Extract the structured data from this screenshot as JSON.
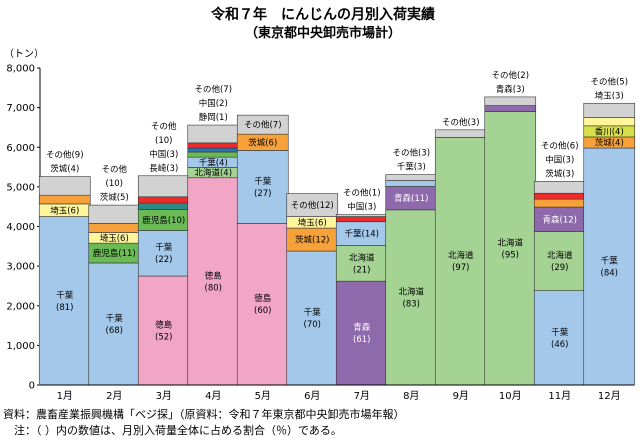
{
  "title": "令和７年　にんじんの月別入荷実績",
  "subtitle": "（東京都中央卸売市場計）",
  "footnote_source": "資料：農畜産業振興機構「ベジ探」（原資料：令和７年東京都中央卸売市場年報）",
  "footnote_note": "　注：（ ）内の数値は、月別入荷量全体に占める割合（％）である。",
  "chart_data": {
    "type": "stacked-bar",
    "unit": "（トン）",
    "ylim": [
      0,
      8000
    ],
    "yticks": [
      "0",
      "1,000",
      "2,000",
      "3,000",
      "4,000",
      "5,000",
      "6,000",
      "7,000",
      "8,000"
    ],
    "grid": false,
    "colors": {
      "千葉": "#a4c8ea",
      "徳島": "#f2a6c6",
      "北海道": "#a5d394",
      "青森": "#8e6aad",
      "鹿児島": "#6aba55",
      "茨城": "#f7a13a",
      "埼玉": "#fff59c",
      "長崎": "#2d8b86",
      "中国": "#ee2a2a",
      "静岡": "#2e6fb5",
      "香川": "#d7e04a",
      "その他": "#d2d2d2"
    },
    "months": [
      {
        "label": "1月",
        "segments": [
          {
            "name": "千葉",
            "value": 4250,
            "label": "千葉\n(81)"
          },
          {
            "name": "埼玉",
            "value": 320,
            "label": "埼玉(6)"
          },
          {
            "name": "茨城",
            "value": 220
          },
          {
            "name": "その他",
            "value": 470
          }
        ],
        "above": [
          "その他(9)",
          "茨城(4)"
        ]
      },
      {
        "label": "2月",
        "segments": [
          {
            "name": "千葉",
            "value": 3080,
            "label": "千葉\n(68)"
          },
          {
            "name": "鹿児島",
            "value": 500,
            "label": "鹿児島(11)"
          },
          {
            "name": "埼玉",
            "value": 270,
            "label": "埼玉(6)"
          },
          {
            "name": "茨城",
            "value": 230
          },
          {
            "name": "その他",
            "value": 460
          }
        ],
        "above": [
          "その他",
          "(10)",
          "茨城(5)"
        ]
      },
      {
        "label": "3月",
        "segments": [
          {
            "name": "徳島",
            "value": 2750,
            "label": "徳島\n(52)"
          },
          {
            "name": "千葉",
            "value": 1150,
            "label": "千葉\n(22)"
          },
          {
            "name": "鹿児島",
            "value": 530,
            "label": "鹿児島(10)"
          },
          {
            "name": "長崎",
            "value": 160
          },
          {
            "name": "中国",
            "value": 160
          },
          {
            "name": "その他",
            "value": 530
          }
        ],
        "above": [
          "その他",
          "(10)",
          "中国(3)",
          "長崎(3)"
        ]
      },
      {
        "label": "4月",
        "segments": [
          {
            "name": "徳島",
            "value": 5230,
            "label": "徳島\n(80)"
          },
          {
            "name": "北海道",
            "value": 260,
            "label": "北海道(4)"
          },
          {
            "name": "千葉",
            "value": 260,
            "label": "千葉(4)"
          },
          {
            "name": "鹿児島",
            "value": 130
          },
          {
            "name": "静岡",
            "value": 100
          },
          {
            "name": "中国",
            "value": 130
          },
          {
            "name": "その他",
            "value": 450
          }
        ],
        "above": [
          "その他(7)",
          "中国(2)",
          "静岡(1)"
        ]
      },
      {
        "label": "5月",
        "segments": [
          {
            "name": "徳島",
            "value": 4080,
            "label": "徳島\n(60)"
          },
          {
            "name": "千葉",
            "value": 1840,
            "label": "千葉\n(27)"
          },
          {
            "name": "茨城",
            "value": 410,
            "label": "茨城(6)"
          },
          {
            "name": "その他",
            "value": 480,
            "label": "その他(7)"
          }
        ]
      },
      {
        "label": "6月",
        "segments": [
          {
            "name": "千葉",
            "value": 3380,
            "label": "千葉\n(70)"
          },
          {
            "name": "茨城",
            "value": 580,
            "label": "茨城(12)"
          },
          {
            "name": "埼玉",
            "value": 290,
            "label": "埼玉(6)"
          },
          {
            "name": "その他",
            "value": 580,
            "label": "その他(12)"
          }
        ]
      },
      {
        "label": "7月",
        "segments": [
          {
            "name": "青森",
            "value": 2620,
            "label": "青森\n(61)"
          },
          {
            "name": "北海道",
            "value": 900,
            "label": "北海道\n(21)"
          },
          {
            "name": "千葉",
            "value": 600,
            "label": "千葉(14)"
          },
          {
            "name": "中国",
            "value": 130
          },
          {
            "name": "その他",
            "value": 50
          }
        ],
        "above": [
          "その他(1)",
          "中国(3)"
        ]
      },
      {
        "label": "8月",
        "segments": [
          {
            "name": "北海道",
            "value": 4420,
            "label": "北海道\n(83)"
          },
          {
            "name": "青森",
            "value": 590,
            "label": "青森(11)"
          },
          {
            "name": "千葉",
            "value": 150
          },
          {
            "name": "その他",
            "value": 150
          }
        ],
        "above": [
          "その他(3)",
          "千葉(3)"
        ]
      },
      {
        "label": "9月",
        "segments": [
          {
            "name": "北海道",
            "value": 6250,
            "label": "北海道\n(97)"
          },
          {
            "name": "その他",
            "value": 190
          }
        ],
        "above": [
          "その他(3)"
        ]
      },
      {
        "label": "10月",
        "segments": [
          {
            "name": "北海道",
            "value": 6900,
            "label": "北海道\n(95)"
          },
          {
            "name": "青森",
            "value": 150
          },
          {
            "name": "その他",
            "value": 220
          }
        ],
        "above": [
          "その他(2)",
          "青森(3)"
        ]
      },
      {
        "label": "11月",
        "segments": [
          {
            "name": "千葉",
            "value": 2380,
            "label": "千葉\n(46)"
          },
          {
            "name": "北海道",
            "value": 1490,
            "label": "北海道\n(29)"
          },
          {
            "name": "青森",
            "value": 620,
            "label": "青森(12)"
          },
          {
            "name": "茨城",
            "value": 200
          },
          {
            "name": "中国",
            "value": 150
          },
          {
            "name": "その他",
            "value": 300
          }
        ],
        "above": [
          "その他(6)",
          "中国(3)",
          "茨城(3)"
        ]
      },
      {
        "label": "12月",
        "segments": [
          {
            "name": "千葉",
            "value": 5980,
            "label": "千葉\n(84)"
          },
          {
            "name": "茨城",
            "value": 280,
            "label": "茨城(4)"
          },
          {
            "name": "香川",
            "value": 280,
            "label": "香川(4)"
          },
          {
            "name": "埼玉",
            "value": 210
          },
          {
            "name": "その他",
            "value": 360
          }
        ],
        "above": [
          "その他(5)",
          "埼玉(3)"
        ]
      }
    ]
  }
}
